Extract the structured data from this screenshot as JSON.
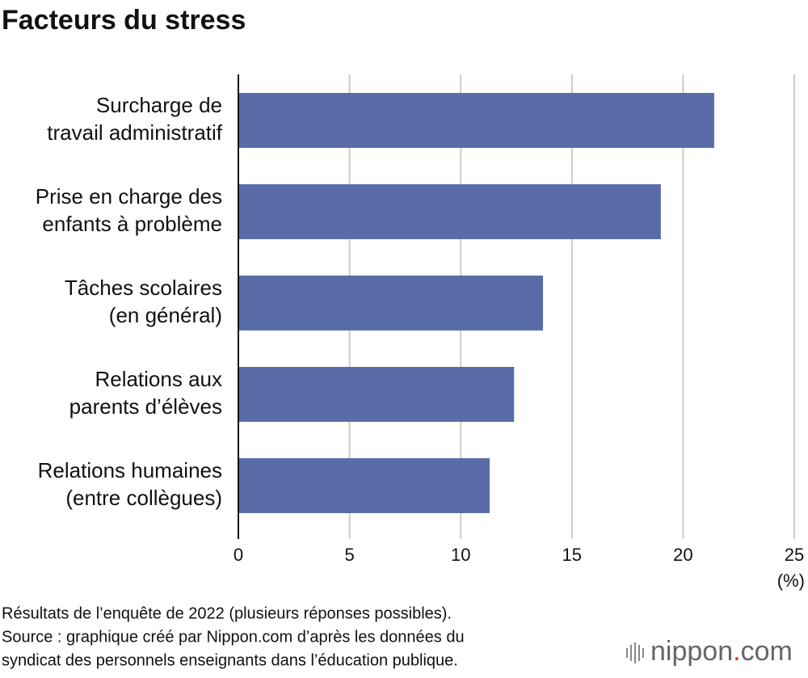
{
  "chart_data": {
    "type": "bar",
    "orientation": "horizontal",
    "title": "Facteurs du stress",
    "categories": [
      [
        "Surcharge de",
        "travail administratif"
      ],
      [
        "Prise en charge des",
        "enfants à problème"
      ],
      [
        "Tâches scolaires",
        "(en général)"
      ],
      [
        "Relations aux",
        "parents d’élèves"
      ],
      [
        "Relations humaines",
        "(entre collègues)"
      ]
    ],
    "values": [
      21.4,
      19.0,
      13.7,
      12.4,
      11.3
    ],
    "color": "#5a6ca8",
    "xlim": [
      0,
      25
    ],
    "xticks": [
      0,
      5,
      10,
      15,
      20,
      25
    ],
    "grid": true,
    "x_label": "(%)",
    "notes": [
      "Résultats de l’enquête de 2022 (plusieurs réponses possibles).",
      "Source : graphique créé par Nippon.com d’après les données du",
      "syndicat des personnels enseignants dans l’éducation publique."
    ],
    "logo": {
      "name": "nippon",
      "dot": ".",
      "domain": "com"
    }
  }
}
